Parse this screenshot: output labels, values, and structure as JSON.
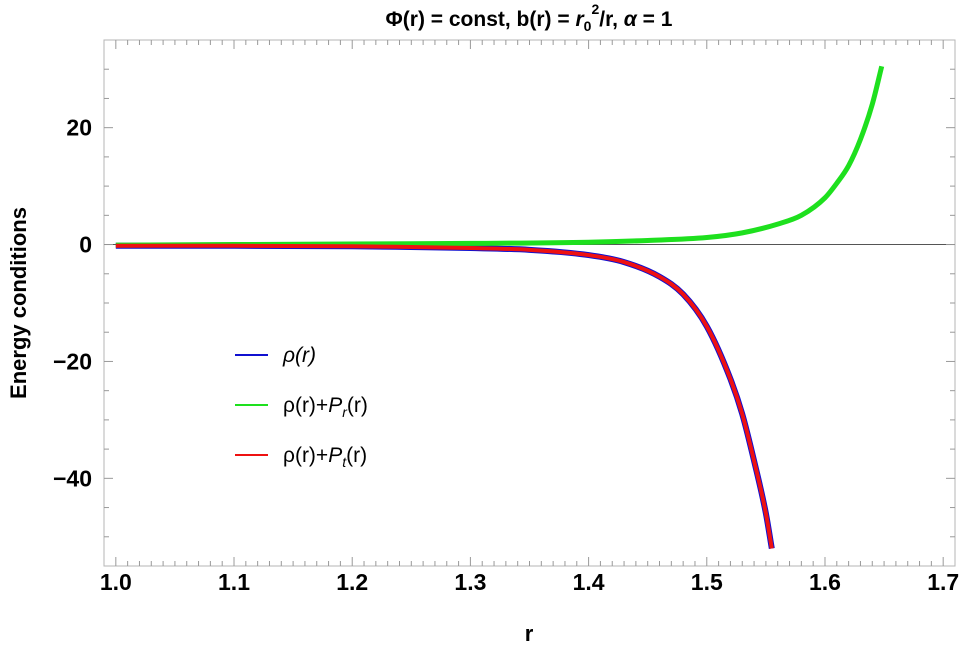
{
  "chart_data": {
    "type": "line",
    "title": "Φ(r) = const, b(r) = r₀²/r, α = 1",
    "title_parts": {
      "lead": "Φ(r) = const, b(r) = ",
      "r": "r",
      "sub0": "0",
      "sup2": "2",
      "mid": "/r, ",
      "alpha": "α",
      "tail": " = 1"
    },
    "xlabel": "r",
    "ylabel": "Energy conditions",
    "xlim": [
      0.99,
      1.71
    ],
    "ylim": [
      -55,
      35
    ],
    "x_ticks": [
      "1.0",
      "1.1",
      "1.2",
      "1.3",
      "1.4",
      "1.5",
      "1.6",
      "1.7"
    ],
    "x_tick_values": [
      1.0,
      1.1,
      1.2,
      1.3,
      1.4,
      1.5,
      1.6,
      1.7
    ],
    "y_ticks": [
      "20",
      "0",
      "−20",
      "−40"
    ],
    "y_tick_values": [
      20,
      0,
      -20,
      -40
    ],
    "grid": false,
    "zero_line": true,
    "legend_position": "left-center",
    "series": [
      {
        "name": "ρ(r)",
        "legend": {
          "base": "ρ(r)",
          "p": "",
          "sub": "",
          "tail": ""
        },
        "color": "#1010d0",
        "x": [
          1.0,
          1.1,
          1.2,
          1.3,
          1.35,
          1.4,
          1.43,
          1.46,
          1.48,
          1.5,
          1.52,
          1.53,
          1.54,
          1.55,
          1.555
        ],
        "values": [
          -0.2,
          -0.2,
          -0.3,
          -0.6,
          -0.9,
          -1.8,
          -3.0,
          -5.5,
          -8.5,
          -14,
          -23,
          -29,
          -37,
          -46,
          -52
        ]
      },
      {
        "name": "ρ(r)+Pr(r)",
        "legend": {
          "base": "ρ(r)+",
          "p": "P",
          "sub": "r",
          "tail": "(r)"
        },
        "color": "#1ee01e",
        "x": [
          1.0,
          1.1,
          1.2,
          1.3,
          1.4,
          1.45,
          1.5,
          1.53,
          1.56,
          1.58,
          1.6,
          1.61,
          1.62,
          1.63,
          1.64,
          1.648
        ],
        "values": [
          -0.1,
          0.0,
          0.1,
          0.2,
          0.4,
          0.7,
          1.2,
          2.0,
          3.5,
          5.0,
          8.0,
          10.5,
          13.5,
          18.0,
          24.0,
          30.5
        ]
      },
      {
        "name": "ρ(r)+Pt(r)",
        "legend": {
          "base": "ρ(r)+",
          "p": "P",
          "sub": "t",
          "tail": "(r)"
        },
        "color": "#ee1111",
        "x": [
          1.0,
          1.1,
          1.2,
          1.3,
          1.35,
          1.4,
          1.43,
          1.46,
          1.48,
          1.5,
          1.52,
          1.53,
          1.54,
          1.55,
          1.555
        ],
        "values": [
          -0.2,
          -0.2,
          -0.3,
          -0.6,
          -0.9,
          -1.8,
          -3.0,
          -5.5,
          -8.5,
          -14,
          -23,
          -29,
          -37,
          -46,
          -52
        ]
      }
    ]
  }
}
